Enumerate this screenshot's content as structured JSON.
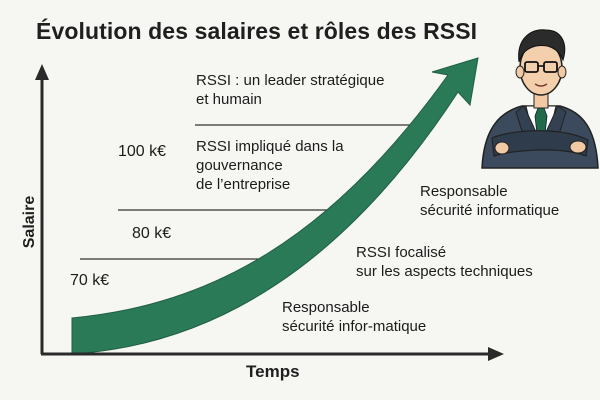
{
  "title": "Évolution des salaires et rôles des RSSI",
  "axes": {
    "y_label": "Salaire",
    "x_label": "Temps"
  },
  "salaries": {
    "s1": "70 k€",
    "s2": "80 k€",
    "s3": "100 k€"
  },
  "roles": {
    "r1": "Responsable\nsécurité infor-matique",
    "r2": "RSSI focalisé\nsur les aspects techniques",
    "r3": "Responsable\nsécurité informatique",
    "r4": "RSSI impliqué dans la\ngouvernance\nde l’entreprise",
    "r5": "RSSI : un leader stratégique\net humain"
  },
  "colors": {
    "arrow": "#2b7a57",
    "axis": "#2a2a2a",
    "suit": "#3b4a5c",
    "tie": "#1f6b4a"
  },
  "icons": {
    "trend": "upward-curved-arrow",
    "person": "businessman-arms-crossed"
  }
}
